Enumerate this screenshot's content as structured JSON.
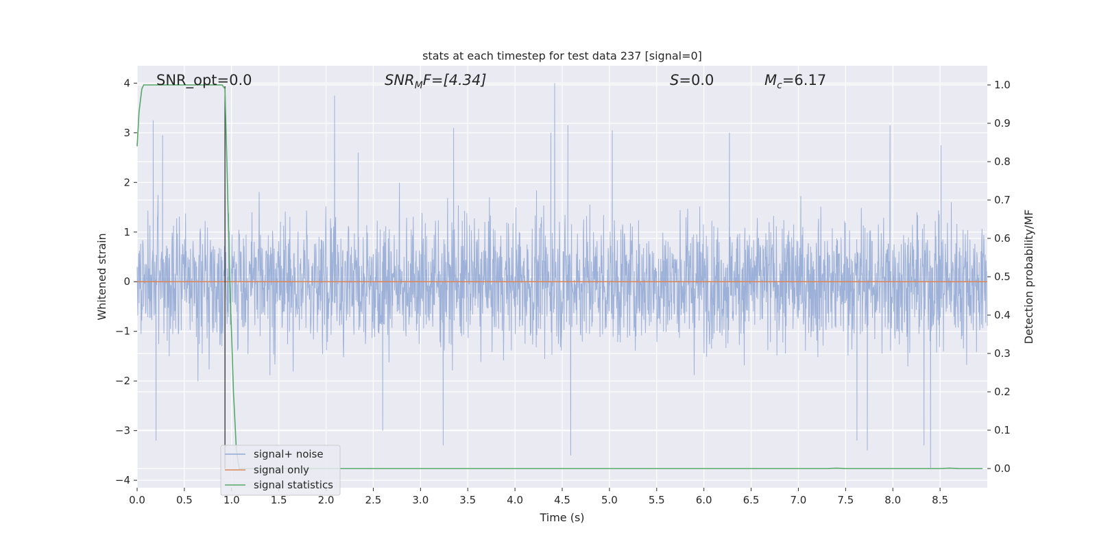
{
  "chart_data": {
    "type": "line",
    "title": "stats at each timestep for test data 237 [signal=0]",
    "xlabel": "Time (s)",
    "ylabel": "Whitened strain",
    "y2label": "Detection probability/MF",
    "xlim": [
      0,
      9.0
    ],
    "ylim": [
      -4.15,
      4.35
    ],
    "y2lim": [
      -0.05,
      1.05
    ],
    "xticks": [
      0.0,
      0.5,
      1.0,
      1.5,
      2.0,
      2.5,
      3.0,
      3.5,
      4.0,
      4.5,
      5.0,
      5.5,
      6.0,
      6.5,
      7.0,
      7.5,
      8.0,
      8.5
    ],
    "xtick_labels": [
      "0.0",
      "0.5",
      "1.0",
      "1.5",
      "2.0",
      "2.5",
      "3.0",
      "3.5",
      "4.0",
      "4.5",
      "5.0",
      "5.5",
      "6.0",
      "6.5",
      "7.0",
      "7.5",
      "8.0",
      "8.5"
    ],
    "yticks": [
      4,
      3,
      2,
      1,
      0,
      -1,
      -2,
      -3,
      -4
    ],
    "ytick_labels": [
      "4",
      "3",
      "2",
      "1",
      "0",
      "−1",
      "−2",
      "−3",
      "−4"
    ],
    "y2ticks": [
      1.0,
      0.9,
      0.8,
      0.7,
      0.6,
      0.5,
      0.4,
      0.3,
      0.2,
      0.1,
      0.0
    ],
    "y2tick_labels": [
      "1.0",
      "0.9",
      "0.8",
      "0.7",
      "0.6",
      "0.5",
      "0.4",
      "0.3",
      "0.2",
      "0.1",
      "0.0"
    ],
    "grid": true,
    "legend_position": "lower-left",
    "annotations": {
      "snr_opt": "SNR_opt=0.0",
      "snr_mf_main": "SNR",
      "snr_mf_sub": "M",
      "snr_mf_rest": "F=[4.34]",
      "s_main": "S",
      "s_rest": "=0.0",
      "mc_main": "M",
      "mc_sub": "c",
      "mc_rest": "=6.17"
    },
    "vertical_line_x": 0.93,
    "series": [
      {
        "name": "signal+ noise",
        "axis": "left",
        "color": "#8fa7d3",
        "description": "dense whitened noise, roughly within ±2.5 with spikes",
        "spikes": [
          {
            "x": 0.17,
            "y": 3.25
          },
          {
            "x": 0.2,
            "y": -3.2
          },
          {
            "x": 0.27,
            "y": 2.95
          },
          {
            "x": 0.93,
            "y": -3.2
          },
          {
            "x": 2.09,
            "y": 3.75
          },
          {
            "x": 2.34,
            "y": 2.6
          },
          {
            "x": 2.6,
            "y": -3.0
          },
          {
            "x": 3.24,
            "y": -3.3
          },
          {
            "x": 3.35,
            "y": 3.1
          },
          {
            "x": 4.38,
            "y": 3.0
          },
          {
            "x": 4.42,
            "y": 4.0
          },
          {
            "x": 4.56,
            "y": 3.15
          },
          {
            "x": 4.59,
            "y": -3.5
          },
          {
            "x": 5.03,
            "y": 3.05
          },
          {
            "x": 6.27,
            "y": 3.0
          },
          {
            "x": 7.62,
            "y": -3.2
          },
          {
            "x": 7.73,
            "y": -3.4
          },
          {
            "x": 7.97,
            "y": 3.15
          },
          {
            "x": 8.33,
            "y": -3.3
          },
          {
            "x": 8.4,
            "y": -3.75
          },
          {
            "x": 8.51,
            "y": 2.75
          }
        ]
      },
      {
        "name": "signal only",
        "axis": "left",
        "color": "#dd8452",
        "x": [
          0,
          9.0
        ],
        "y": [
          0,
          0
        ]
      },
      {
        "name": "signal statistics",
        "axis": "right",
        "color": "#55a868",
        "x": [
          0.0,
          0.02,
          0.05,
          0.07,
          0.1,
          0.15,
          0.3,
          0.5,
          0.7,
          0.85,
          0.9,
          0.93,
          0.95,
          0.98,
          1.02,
          1.05,
          1.08,
          1.1,
          1.5,
          2.0,
          3.0,
          4.0,
          5.0,
          6.0,
          7.0,
          7.3,
          7.4,
          7.5,
          8.0,
          8.5,
          8.6,
          8.7,
          8.95
        ],
        "y": [
          0.84,
          0.93,
          0.99,
          1.0,
          1.0,
          1.0,
          1.0,
          1.0,
          1.0,
          1.0,
          1.0,
          0.99,
          0.8,
          0.5,
          0.2,
          0.05,
          0.0,
          0.0,
          0.0,
          0.0,
          0.0,
          0.0,
          0.0,
          0.0,
          0.0,
          0.0,
          0.001,
          0.0,
          0.0,
          0.0,
          0.001,
          0.0,
          0.0
        ]
      }
    ]
  },
  "colors": {
    "plot_background": "#eaeaf2",
    "grid": "#ffffff",
    "noise": "#8fa7d3",
    "signal_only": "#dd8452",
    "statistics": "#55a868",
    "vertical_line": "#333333"
  }
}
